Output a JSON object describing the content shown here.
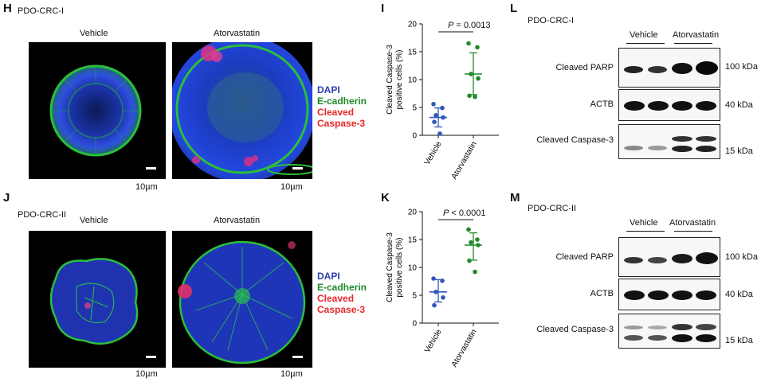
{
  "panels": {
    "H": {
      "letter": "H",
      "title": "PDO-CRC-I",
      "conditions": [
        "Vehicle",
        "Atorvastatin"
      ],
      "scale": [
        "10µm",
        "10µm"
      ]
    },
    "J": {
      "letter": "J",
      "title": "PDO-CRC-II",
      "conditions": [
        "Vehicle",
        "Atorvastatin"
      ],
      "scale": [
        "10µm",
        "10µm"
      ]
    },
    "legend": {
      "dapi": "DAPI",
      "ecad": "E-cadherin",
      "cleaved1": "Cleaved",
      "cleaved2": "Caspase-3",
      "colors": {
        "dapi": "#2e3fb0",
        "ecad": "#1f8a2a",
        "casp": "#e8262a"
      }
    },
    "I": {
      "letter": "I",
      "p_label": "P",
      "p_rest": " = 0.0013"
    },
    "K": {
      "letter": "K",
      "p_label": "P",
      "p_rest": " < 0.0001"
    },
    "L": {
      "letter": "L",
      "title": "PDO-CRC-I"
    },
    "M": {
      "letter": "M",
      "title": "PDO-CRC-II"
    },
    "blot": {
      "vehicle": "Vehicle",
      "atorvastatin": "Atorvastatin",
      "rows": [
        "Cleaved PARP",
        "ACTB",
        "Cleaved Caspase-3"
      ],
      "markers": [
        "100 kDa",
        "40 kDa",
        "15 kDa"
      ]
    }
  },
  "chart_data": [
    {
      "type": "scatter",
      "panel": "I",
      "ylabel": "Cleaved Caspase-3 positive cells (%)",
      "categories": [
        "Vehicle",
        "Atorvastatin"
      ],
      "ylim": [
        0,
        20
      ],
      "yticks": [
        0,
        5,
        10,
        15,
        20
      ],
      "series": [
        {
          "category": "Vehicle",
          "color": "#2f57b8",
          "values": [
            5.6,
            4.9,
            3.6,
            3.2,
            2.4,
            0.3
          ],
          "mean": 3.2,
          "sd_low": 1.5,
          "sd_high": 4.9
        },
        {
          "category": "Atorvastatin",
          "color": "#1f8a2a",
          "values": [
            16.5,
            15.8,
            11.0,
            10.2,
            7.1,
            6.9
          ],
          "mean": 11.0,
          "sd_low": 7.3,
          "sd_high": 14.8
        }
      ]
    },
    {
      "type": "scatter",
      "panel": "K",
      "ylabel": "Cleaved Caspase-3 positive cells (%)",
      "categories": [
        "Vehicle",
        "Atorvastatin"
      ],
      "ylim": [
        0,
        20
      ],
      "yticks": [
        0,
        5,
        10,
        15,
        20
      ],
      "series": [
        {
          "category": "Vehicle",
          "color": "#2f57b8",
          "values": [
            8.0,
            7.6,
            5.6,
            4.6,
            3.2
          ],
          "mean": 5.6,
          "sd_low": 3.8,
          "sd_high": 7.8
        },
        {
          "category": "Atorvastatin",
          "color": "#1f8a2a",
          "values": [
            16.8,
            15.0,
            14.5,
            14.0,
            11.2,
            9.2
          ],
          "mean": 14.0,
          "sd_low": 11.3,
          "sd_high": 16.2
        }
      ]
    }
  ]
}
